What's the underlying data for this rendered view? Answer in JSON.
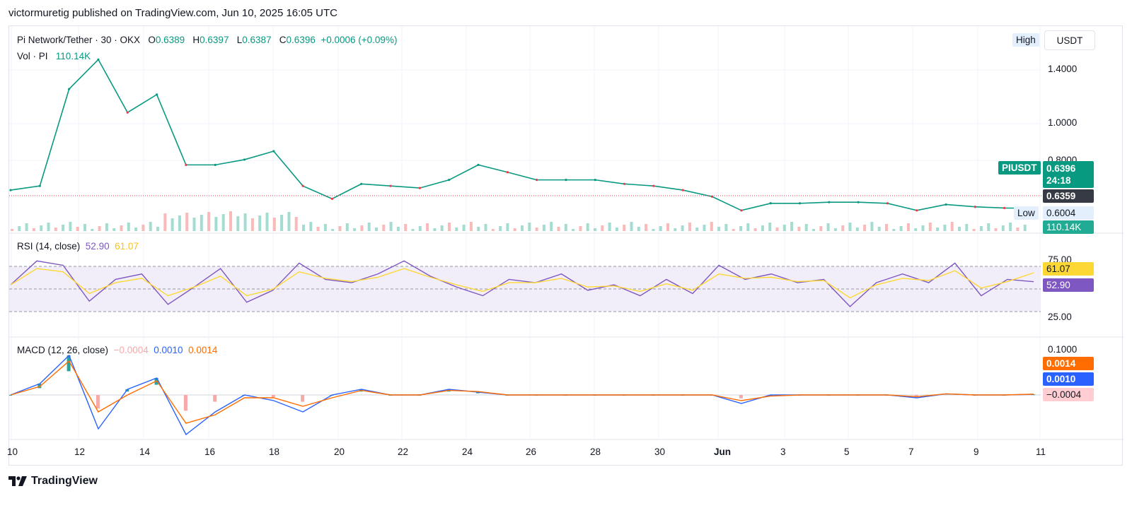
{
  "publisher_line": "victormuretig published on TradingView.com, Jun 10, 2025 16:05 UTC",
  "brand": "TradingView",
  "currency_button": "USDT",
  "legend": {
    "symbol": "Pi Network/Tether · 30 · OKX",
    "o_label": "O",
    "o_value": "0.6389",
    "h_label": "H",
    "h_value": "0.6397",
    "l_label": "L",
    "l_value": "0.6387",
    "c_label": "C",
    "c_value": "0.6396",
    "change": "+0.0006 (+0.09%)",
    "vol_label": "Vol · PI",
    "vol_value": "110.14K"
  },
  "price_tags": {
    "high_label": "High",
    "low_label": "Low",
    "low_value": "0.6004",
    "ticker": "PIUSDT",
    "last_price": "0.6396",
    "countdown": "24:18",
    "line_price": "0.6359",
    "volume": "110.14K"
  },
  "rsi": {
    "label": "RSI (14, close)",
    "value": "52.90",
    "ma_value": "61.07"
  },
  "macd": {
    "label": "MACD (12, 26, close)",
    "hist": "−0.0004",
    "macd": "0.0010",
    "signal": "0.0014"
  },
  "colors": {
    "up": "#089981",
    "down": "#f23645",
    "rsi": "#7e57c2",
    "rsi_ma": "#fdd835",
    "macd": "#2962ff",
    "signal": "#ff6d00",
    "hist_neg": "#f7a9a7"
  },
  "chart_data": [
    {
      "type": "line",
      "title": "Pi Network/Tether · 30 · OKX",
      "x": [
        "May 10",
        "May 11",
        "May 12",
        "May 12.5",
        "May 13",
        "May 14",
        "May 14.8",
        "May 15",
        "May 16",
        "May 16.6",
        "May 17",
        "May 17.8",
        "May 18",
        "May 19",
        "May 20",
        "May 21",
        "May 22",
        "May 23",
        "May 24",
        "May 25",
        "May 26",
        "May 27",
        "May 28",
        "May 29",
        "May 30",
        "May 31",
        "Jun 1",
        "Jun 2",
        "Jun 3",
        "Jun 4",
        "Jun 5",
        "Jun 6",
        "Jun 7",
        "Jun 8",
        "Jun 9",
        "Jun 10"
      ],
      "series": [
        {
          "values": [
            0.72,
            0.74,
            1.4,
            1.7,
            1.2,
            1.35,
            0.85,
            0.85,
            0.88,
            0.93,
            0.74,
            0.68,
            0.75,
            0.74,
            0.73,
            0.77,
            0.85,
            0.81,
            0.77,
            0.77,
            0.77,
            0.75,
            0.74,
            0.72,
            0.69,
            0.63,
            0.66,
            0.66,
            0.665,
            0.665,
            0.66,
            0.63,
            0.655,
            0.645,
            0.64,
            0.6396
          ]
        }
      ],
      "y_ticks": [
        "1.4000",
        "1.0000",
        "0.8000"
      ],
      "x_ticks": [
        "10",
        "12",
        "14",
        "16",
        "18",
        "20",
        "22",
        "24",
        "26",
        "28",
        "30",
        "Jun",
        "3",
        "5",
        "7",
        "9",
        "11"
      ],
      "scale": "log"
    },
    {
      "type": "line",
      "title": "RSI (14, close)",
      "series": [
        {
          "name": "RSI",
          "values": [
            50,
            72,
            68,
            35,
            55,
            60,
            32,
            48,
            65,
            34,
            45,
            70,
            55,
            52,
            60,
            72,
            58,
            48,
            40,
            55,
            52,
            60,
            45,
            50,
            40,
            55,
            42,
            68,
            55,
            60,
            52,
            55,
            30,
            52,
            60,
            52,
            70,
            40,
            55,
            52.9
          ]
        },
        {
          "name": "MA",
          "values": [
            50,
            65,
            62,
            42,
            52,
            56,
            40,
            48,
            58,
            40,
            46,
            62,
            56,
            53,
            57,
            65,
            57,
            50,
            44,
            52,
            52,
            56,
            48,
            49,
            44,
            51,
            45,
            60,
            56,
            57,
            53,
            54,
            38,
            50,
            56,
            54,
            63,
            47,
            53,
            61.07
          ]
        }
      ],
      "y_ticks": [
        "75.00",
        "25.00"
      ],
      "bands": [
        70,
        50,
        30
      ]
    },
    {
      "type": "line",
      "title": "MACD (12, 26, close)",
      "series": [
        {
          "name": "MACD",
          "values": [
            0,
            0.02,
            0.07,
            -0.06,
            0.01,
            0.03,
            -0.07,
            -0.03,
            0,
            -0.01,
            -0.03,
            0,
            0.01,
            0,
            0,
            0.01,
            0.005,
            0,
            0,
            0,
            0,
            0,
            0,
            0,
            0,
            -0.015,
            0,
            0,
            0,
            0,
            0,
            -0.005,
            0.002,
            0,
            0,
            0.001
          ]
        },
        {
          "name": "Signal",
          "values": [
            0,
            0.015,
            0.06,
            -0.03,
            0,
            0.025,
            -0.05,
            -0.035,
            -0.005,
            -0.005,
            -0.02,
            -0.005,
            0.008,
            0,
            0,
            0.008,
            0.006,
            0,
            0,
            0,
            0,
            0,
            0,
            0,
            0,
            -0.01,
            -0.002,
            0,
            0,
            0,
            0,
            -0.003,
            0.002,
            0,
            0,
            0.0014
          ]
        }
      ],
      "y_ticks": [
        "0.1000"
      ]
    }
  ]
}
